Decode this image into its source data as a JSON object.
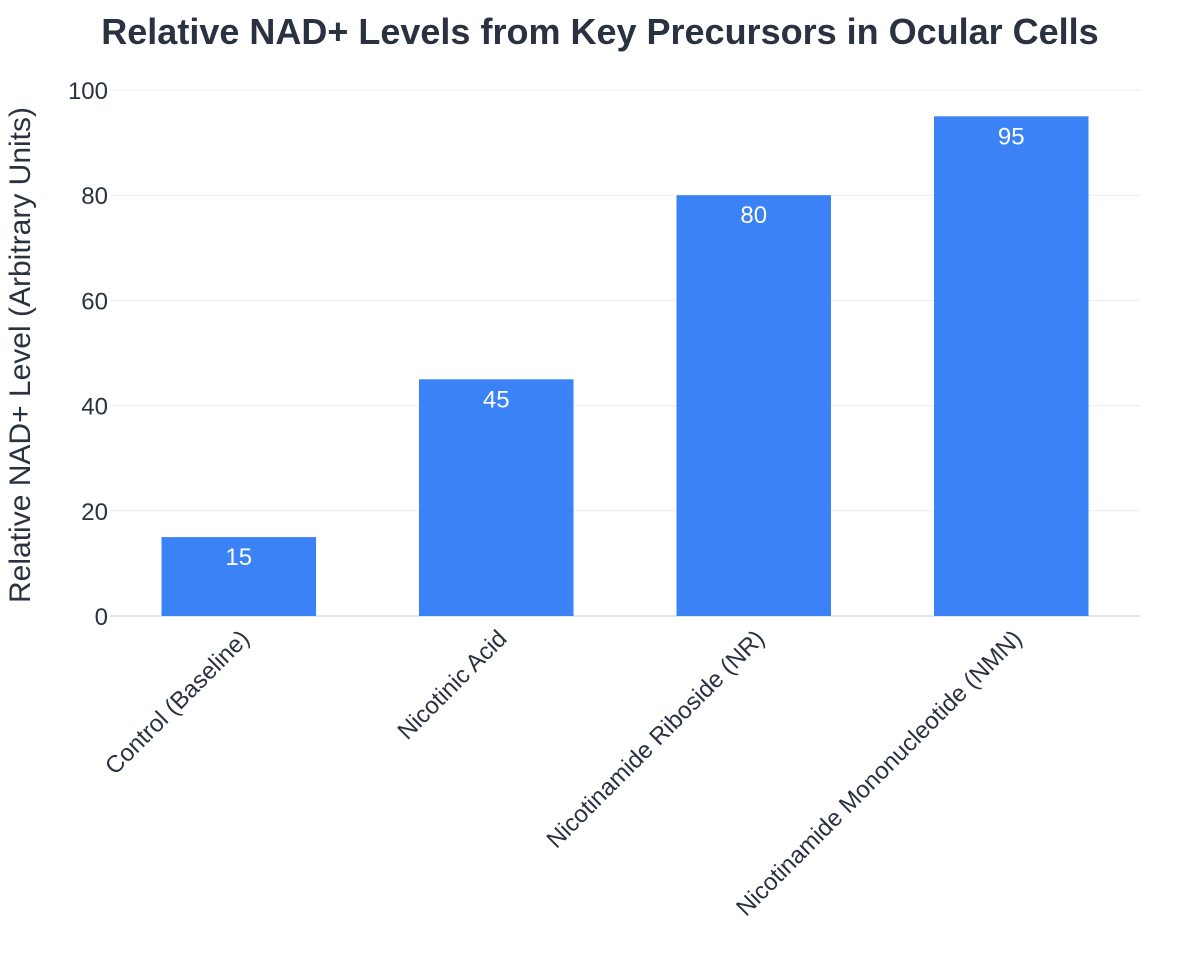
{
  "chart_data": {
    "type": "bar",
    "title": "Relative NAD+ Levels from Key Precursors in Ocular Cells",
    "xlabel": "",
    "ylabel": "Relative NAD+ Level (Arbitrary Units)",
    "categories": [
      "Control (Baseline)",
      "Nicotinic Acid",
      "Nicotinamide Riboside (NR)",
      "Nicotinamide Mononucleotide (NMN)"
    ],
    "values": [
      15,
      45,
      80,
      95
    ],
    "data_labels": [
      "15",
      "45",
      "80",
      "95"
    ],
    "ylim": [
      0,
      100
    ],
    "yticks": [
      0,
      20,
      40,
      60,
      80,
      100
    ],
    "ytick_labels": [
      "0",
      "20",
      "40",
      "60",
      "80",
      "100"
    ],
    "grid": true,
    "legend": "none",
    "bar_color": "#3b82f6"
  }
}
